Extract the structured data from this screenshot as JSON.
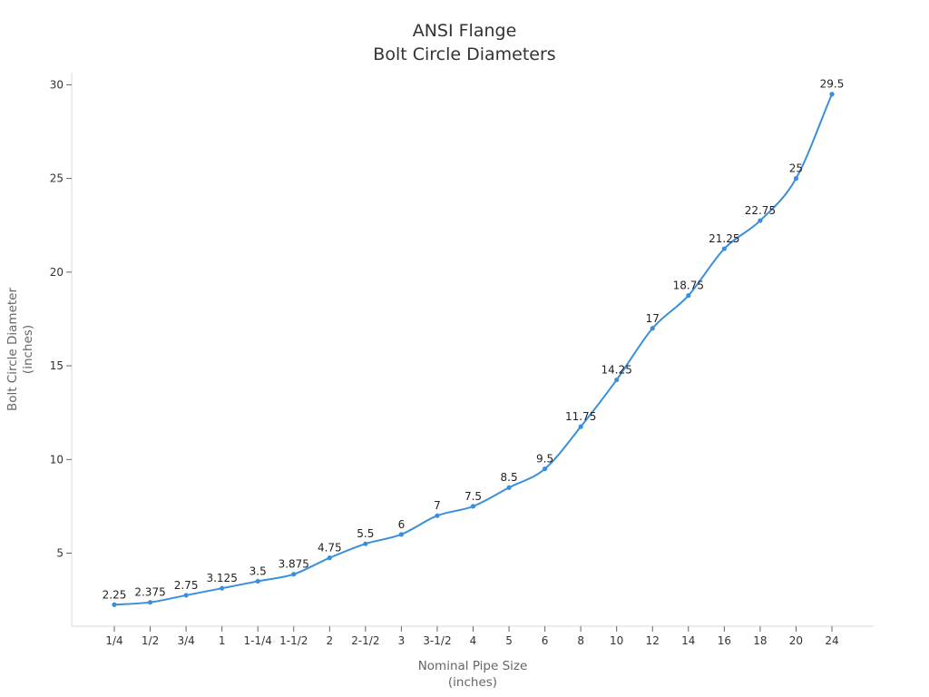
{
  "chart_data": {
    "type": "line",
    "title": [
      "ANSI Flange",
      "Bolt Circle Diameters"
    ],
    "xlabel": [
      "Nominal Pipe Size",
      "(inches)"
    ],
    "ylabel": [
      "Bolt Circle Diameter",
      "(inches)"
    ],
    "categories": [
      "1/4",
      "1/2",
      "3/4",
      "1",
      "1-1/4",
      "1-1/2",
      "2",
      "2-1/2",
      "3",
      "3-1/2",
      "4",
      "5",
      "6",
      "8",
      "10",
      "12",
      "14",
      "16",
      "18",
      "20",
      "24"
    ],
    "series": [
      {
        "values": [
          2.25,
          2.375,
          2.75,
          3.125,
          3.5,
          3.875,
          4.75,
          5.5,
          6,
          7,
          7.5,
          8.5,
          9.5,
          11.75,
          14.25,
          17,
          18.75,
          21.25,
          22.75,
          25,
          29.5
        ],
        "labels": [
          "2.25",
          "2.375",
          "2.75",
          "3.125",
          "3.5",
          "3.875",
          "4.75",
          "5.5",
          "6",
          "7",
          "7.5",
          "8.5",
          "9.5",
          "11.75",
          "14.25",
          "17",
          "18.75",
          "21.25",
          "22.75",
          "25",
          "29.5"
        ],
        "color": "#3a8fdc",
        "smooth": true,
        "markers": true
      }
    ],
    "yticks": [
      5,
      10,
      15,
      20,
      25,
      30
    ],
    "ylim": [
      1.1,
      30.65
    ],
    "grid": false,
    "legend": "none"
  }
}
